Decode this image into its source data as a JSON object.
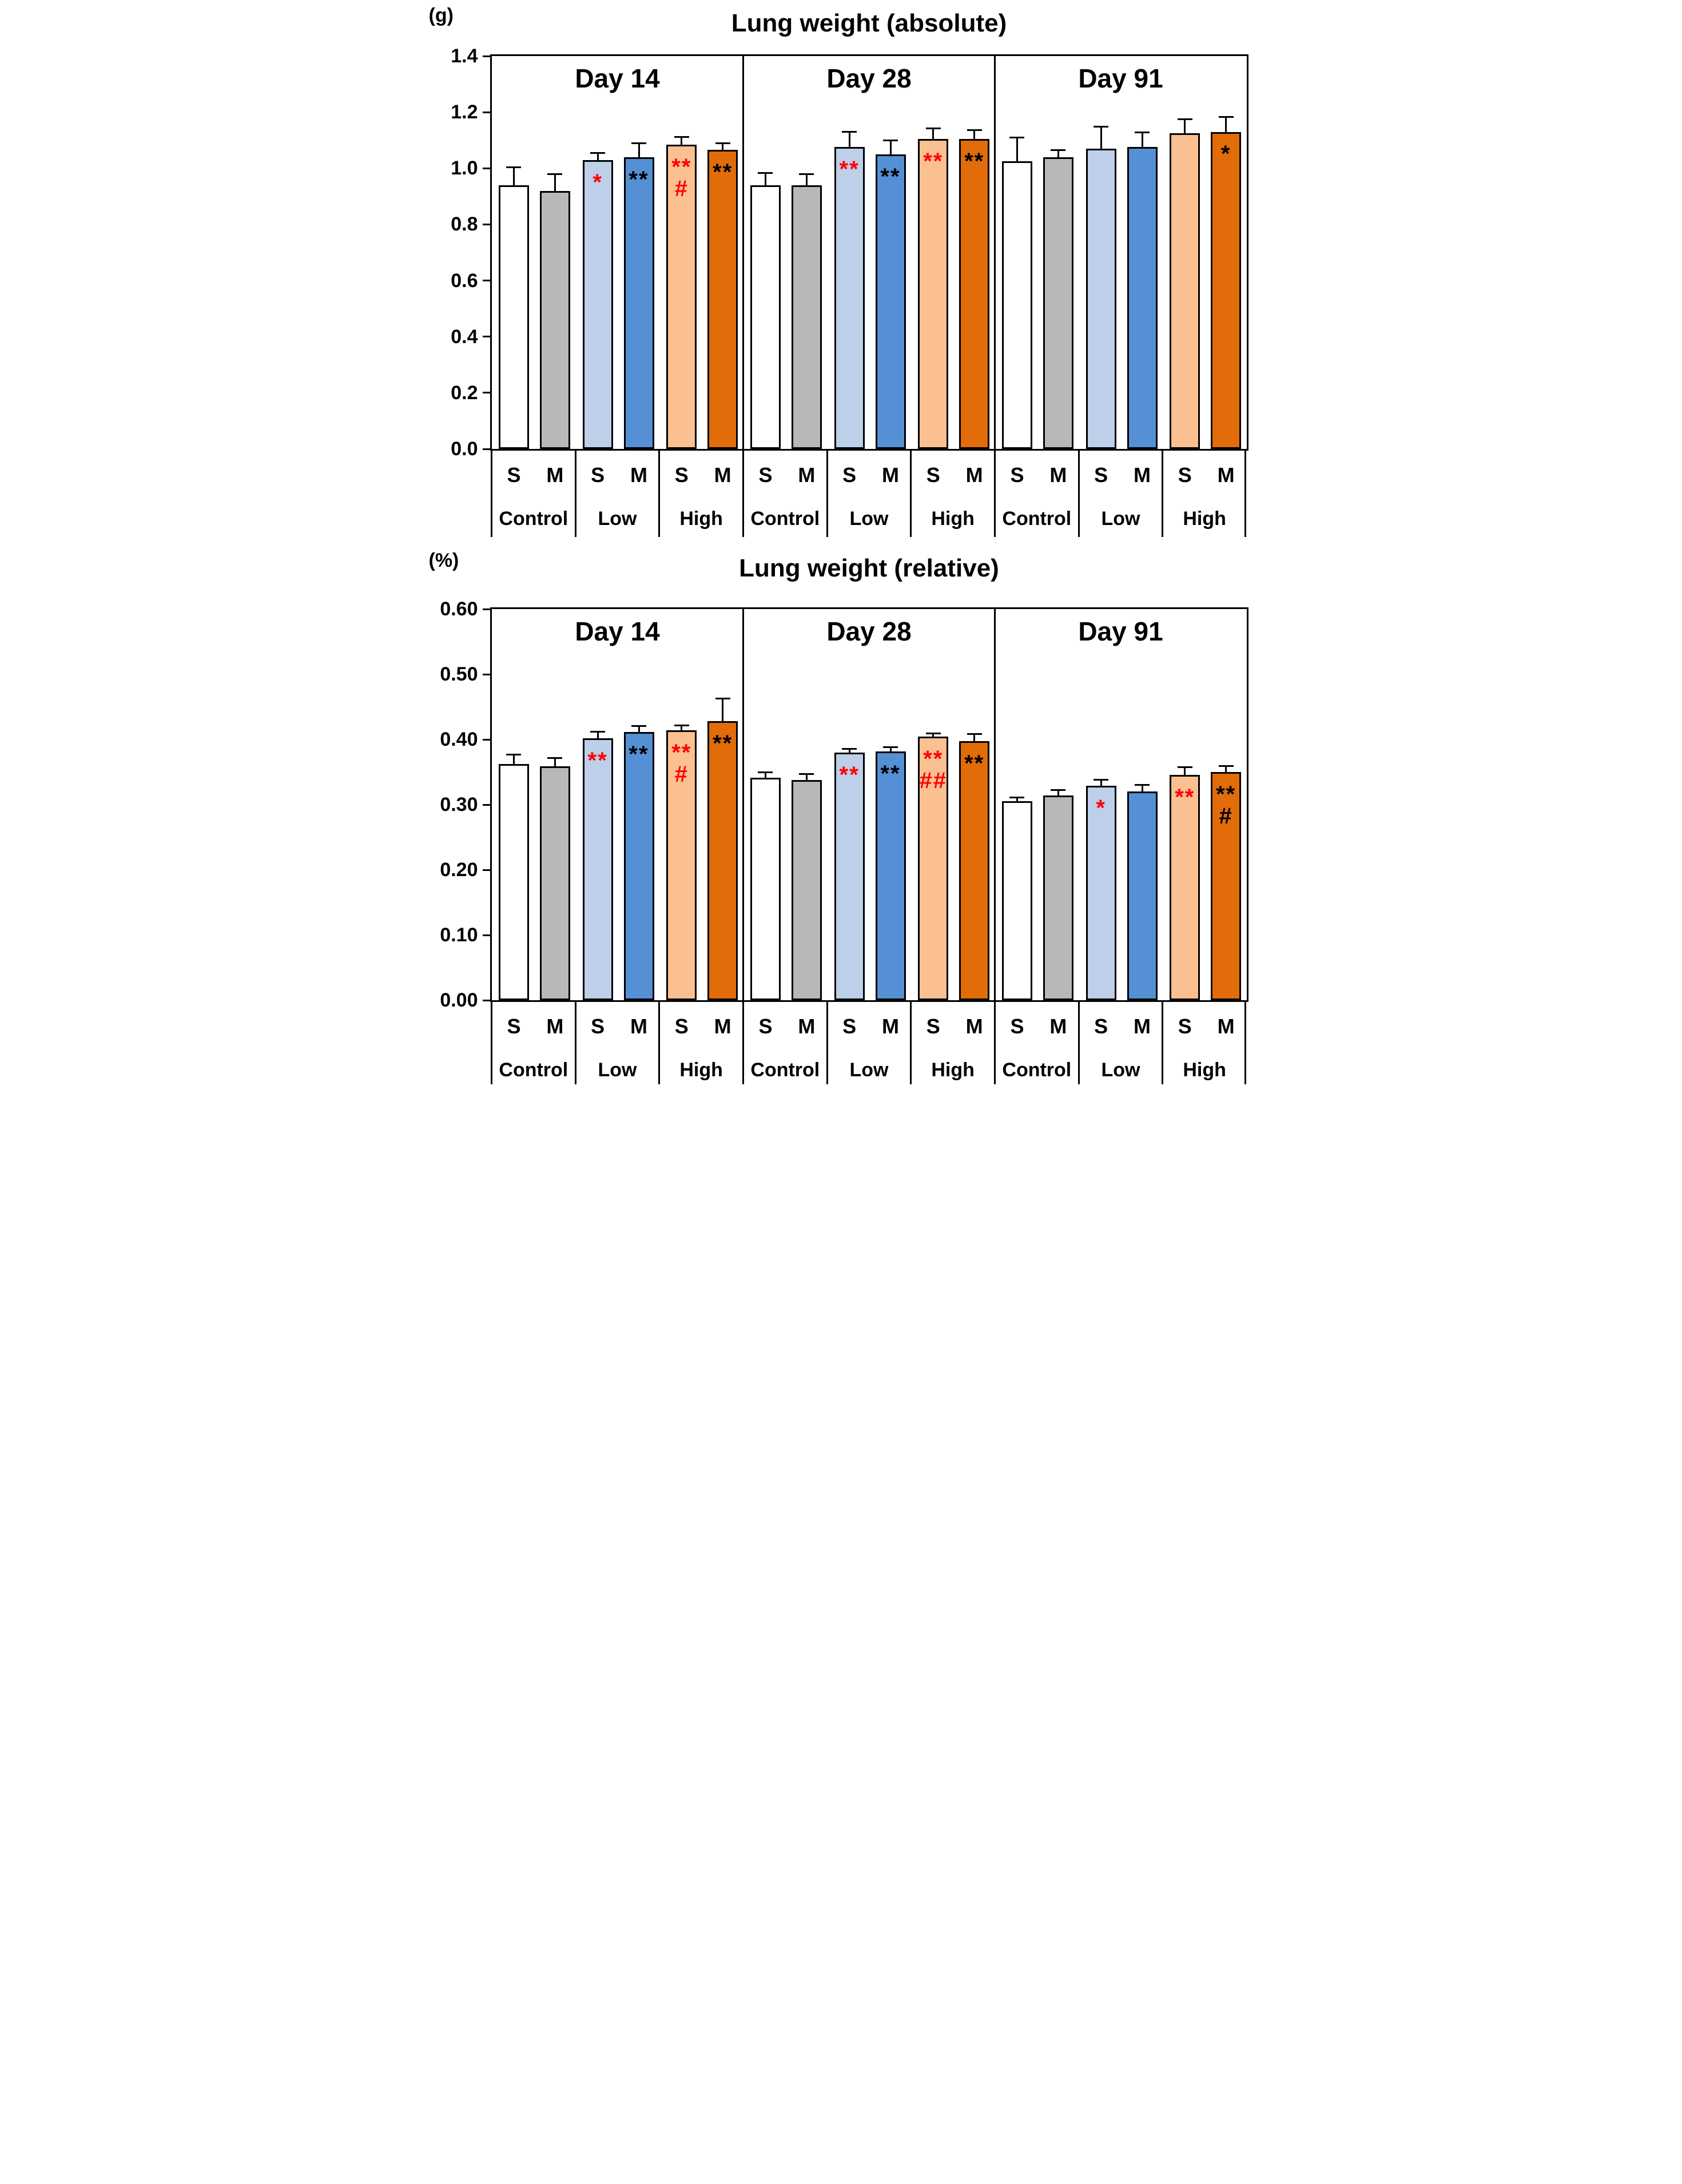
{
  "palette": {
    "white": "#FFFFFF",
    "gray": "#B8B8B8",
    "light_blue": "#BDCFE9",
    "blue": "#5590D5",
    "light_orange": "#FAC091",
    "dark_orange": "#E26C09",
    "sig_red": "#FF0000",
    "sig_black": "#000000",
    "axis": "#000000"
  },
  "chart_data": [
    {
      "type": "bar",
      "title": "Lung weight (absolute)",
      "unit_label": "(g)",
      "xlabel": "",
      "ylabel": "(g)",
      "ylim": [
        0,
        1.4
      ],
      "ytick_labels": [
        "1.4",
        "1.2",
        "1.0",
        "0.8",
        "0.6",
        "0.4",
        "0.2",
        "0.0"
      ],
      "grid": false,
      "legend": "none",
      "panels": [
        {
          "label": "Day 14",
          "groups": [
            {
              "label": "Control",
              "bars": [
                {
                  "label": "S",
                  "value": 0.94,
                  "err": 0.065,
                  "color": "white",
                  "sig": []
                },
                {
                  "label": "M",
                  "value": 0.92,
                  "err": 0.06,
                  "color": "gray",
                  "sig": []
                }
              ]
            },
            {
              "label": "Low",
              "bars": [
                {
                  "label": "S",
                  "value": 1.03,
                  "err": 0.025,
                  "color": "light_blue",
                  "sig": [
                    {
                      "text": "*",
                      "color": "red"
                    }
                  ]
                },
                {
                  "label": "M",
                  "value": 1.04,
                  "err": 0.05,
                  "color": "blue",
                  "sig": [
                    {
                      "text": "**",
                      "color": "black"
                    }
                  ]
                }
              ]
            },
            {
              "label": "High",
              "bars": [
                {
                  "label": "S",
                  "value": 1.085,
                  "err": 0.028,
                  "color": "light_orange",
                  "sig": [
                    {
                      "text": "**",
                      "color": "red"
                    },
                    {
                      "text": "#",
                      "color": "red"
                    }
                  ]
                },
                {
                  "label": "M",
                  "value": 1.065,
                  "err": 0.025,
                  "color": "dark_orange",
                  "sig": [
                    {
                      "text": "**",
                      "color": "black"
                    }
                  ]
                }
              ]
            }
          ]
        },
        {
          "label": "Day 28",
          "groups": [
            {
              "label": "Control",
              "bars": [
                {
                  "label": "S",
                  "value": 0.94,
                  "err": 0.045,
                  "color": "white",
                  "sig": []
                },
                {
                  "label": "M",
                  "value": 0.94,
                  "err": 0.04,
                  "color": "gray",
                  "sig": []
                }
              ]
            },
            {
              "label": "Low",
              "bars": [
                {
                  "label": "S",
                  "value": 1.075,
                  "err": 0.056,
                  "color": "light_blue",
                  "sig": [
                    {
                      "text": "**",
                      "color": "red"
                    }
                  ]
                },
                {
                  "label": "M",
                  "value": 1.05,
                  "err": 0.05,
                  "color": "blue",
                  "sig": [
                    {
                      "text": "**",
                      "color": "black"
                    }
                  ]
                }
              ]
            },
            {
              "label": "High",
              "bars": [
                {
                  "label": "S",
                  "value": 1.105,
                  "err": 0.038,
                  "color": "light_orange",
                  "sig": [
                    {
                      "text": "**",
                      "color": "red"
                    }
                  ]
                },
                {
                  "label": "M",
                  "value": 1.105,
                  "err": 0.032,
                  "color": "dark_orange",
                  "sig": [
                    {
                      "text": "**",
                      "color": "black"
                    }
                  ]
                }
              ]
            }
          ]
        },
        {
          "label": "Day 91",
          "groups": [
            {
              "label": "Control",
              "bars": [
                {
                  "label": "S",
                  "value": 1.025,
                  "err": 0.085,
                  "color": "white",
                  "sig": []
                },
                {
                  "label": "M",
                  "value": 1.04,
                  "err": 0.025,
                  "color": "gray",
                  "sig": []
                }
              ]
            },
            {
              "label": "Low",
              "bars": [
                {
                  "label": "S",
                  "value": 1.07,
                  "err": 0.08,
                  "color": "light_blue",
                  "sig": []
                },
                {
                  "label": "M",
                  "value": 1.075,
                  "err": 0.055,
                  "color": "blue",
                  "sig": []
                }
              ]
            },
            {
              "label": "High",
              "bars": [
                {
                  "label": "S",
                  "value": 1.125,
                  "err": 0.05,
                  "color": "light_orange",
                  "sig": []
                },
                {
                  "label": "M",
                  "value": 1.13,
                  "err": 0.055,
                  "color": "dark_orange",
                  "sig": [
                    {
                      "text": "*",
                      "color": "black"
                    }
                  ]
                }
              ]
            }
          ]
        }
      ]
    },
    {
      "type": "bar",
      "title": "Lung weight (relative)",
      "unit_label": "(%)",
      "xlabel": "",
      "ylabel": "(%)",
      "ylim": [
        0,
        0.6
      ],
      "ytick_labels": [
        "0.60",
        "0.50",
        "0.40",
        "0.30",
        "0.20",
        "0.10",
        "0.00"
      ],
      "grid": false,
      "legend": "none",
      "panels": [
        {
          "label": "Day 14",
          "groups": [
            {
              "label": "Control",
              "bars": [
                {
                  "label": "S",
                  "value": 0.362,
                  "err": 0.015,
                  "color": "white",
                  "sig": []
                },
                {
                  "label": "M",
                  "value": 0.359,
                  "err": 0.013,
                  "color": "gray",
                  "sig": []
                }
              ]
            },
            {
              "label": "Low",
              "bars": [
                {
                  "label": "S",
                  "value": 0.402,
                  "err": 0.01,
                  "color": "light_blue",
                  "sig": [
                    {
                      "text": "**",
                      "color": "red"
                    }
                  ]
                },
                {
                  "label": "M",
                  "value": 0.411,
                  "err": 0.01,
                  "color": "blue",
                  "sig": [
                    {
                      "text": "**",
                      "color": "black"
                    }
                  ]
                }
              ]
            },
            {
              "label": "High",
              "bars": [
                {
                  "label": "S",
                  "value": 0.414,
                  "err": 0.008,
                  "color": "light_orange",
                  "sig": [
                    {
                      "text": "**",
                      "color": "red"
                    },
                    {
                      "text": "#",
                      "color": "red"
                    }
                  ]
                },
                {
                  "label": "M",
                  "value": 0.428,
                  "err": 0.035,
                  "color": "dark_orange",
                  "sig": [
                    {
                      "text": "**",
                      "color": "black"
                    }
                  ]
                }
              ]
            }
          ]
        },
        {
          "label": "Day 28",
          "groups": [
            {
              "label": "Control",
              "bars": [
                {
                  "label": "S",
                  "value": 0.341,
                  "err": 0.009,
                  "color": "white",
                  "sig": []
                },
                {
                  "label": "M",
                  "value": 0.338,
                  "err": 0.009,
                  "color": "gray",
                  "sig": []
                }
              ]
            },
            {
              "label": "Low",
              "bars": [
                {
                  "label": "S",
                  "value": 0.38,
                  "err": 0.006,
                  "color": "light_blue",
                  "sig": [
                    {
                      "text": "**",
                      "color": "red"
                    }
                  ]
                },
                {
                  "label": "M",
                  "value": 0.382,
                  "err": 0.007,
                  "color": "blue",
                  "sig": [
                    {
                      "text": "**",
                      "color": "black"
                    }
                  ]
                }
              ]
            },
            {
              "label": "High",
              "bars": [
                {
                  "label": "S",
                  "value": 0.404,
                  "err": 0.006,
                  "color": "light_orange",
                  "sig": [
                    {
                      "text": "**",
                      "color": "red"
                    },
                    {
                      "text": "##",
                      "color": "red"
                    }
                  ]
                },
                {
                  "label": "M",
                  "value": 0.397,
                  "err": 0.012,
                  "color": "dark_orange",
                  "sig": [
                    {
                      "text": "**",
                      "color": "black"
                    }
                  ]
                }
              ]
            }
          ]
        },
        {
          "label": "Day 91",
          "groups": [
            {
              "label": "Control",
              "bars": [
                {
                  "label": "S",
                  "value": 0.305,
                  "err": 0.006,
                  "color": "white",
                  "sig": []
                },
                {
                  "label": "M",
                  "value": 0.314,
                  "err": 0.009,
                  "color": "gray",
                  "sig": []
                }
              ]
            },
            {
              "label": "Low",
              "bars": [
                {
                  "label": "S",
                  "value": 0.329,
                  "err": 0.01,
                  "color": "light_blue",
                  "sig": [
                    {
                      "text": "*",
                      "color": "red"
                    }
                  ]
                },
                {
                  "label": "M",
                  "value": 0.32,
                  "err": 0.011,
                  "color": "blue",
                  "sig": []
                }
              ]
            },
            {
              "label": "High",
              "bars": [
                {
                  "label": "S",
                  "value": 0.346,
                  "err": 0.012,
                  "color": "light_orange",
                  "sig": [
                    {
                      "text": "**",
                      "color": "red"
                    }
                  ]
                },
                {
                  "label": "M",
                  "value": 0.35,
                  "err": 0.01,
                  "color": "dark_orange",
                  "sig": [
                    {
                      "text": "**",
                      "color": "black"
                    },
                    {
                      "text": "#",
                      "color": "black"
                    }
                  ]
                }
              ]
            }
          ]
        }
      ]
    }
  ]
}
